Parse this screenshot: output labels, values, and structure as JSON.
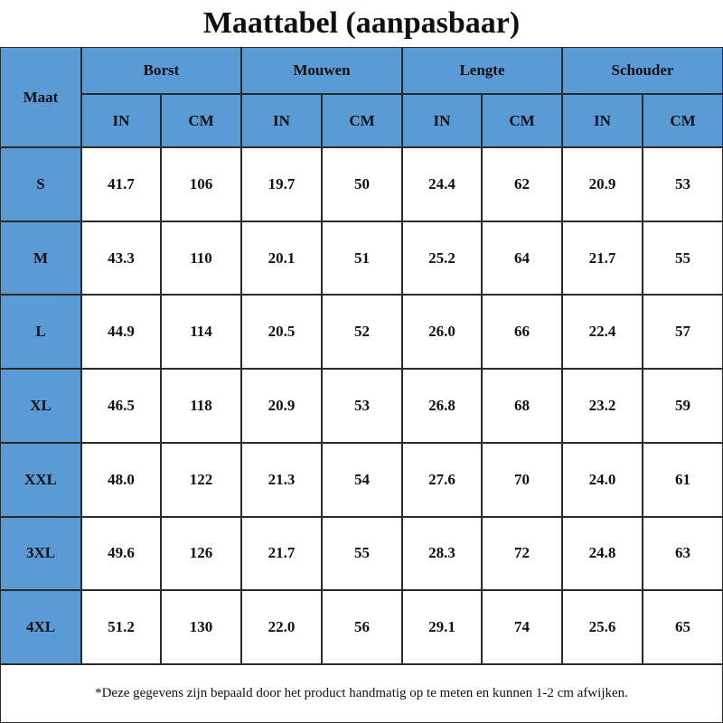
{
  "header": {
    "title": "Maattabel (aanpasbaar)",
    "size_label": "Maat",
    "groups": [
      {
        "label": "Borst",
        "units": [
          "IN",
          "CM"
        ]
      },
      {
        "label": "Mouwen",
        "units": [
          "IN",
          "CM"
        ]
      },
      {
        "label": "Lengte",
        "units": [
          "IN",
          "CM"
        ]
      },
      {
        "label": "Schouder",
        "units": [
          "IN",
          "CM"
        ]
      }
    ]
  },
  "table": {
    "rows": [
      {
        "size": "S",
        "values": [
          "41.7",
          "106",
          "19.7",
          "50",
          "24.4",
          "62",
          "20.9",
          "53"
        ]
      },
      {
        "size": "M",
        "values": [
          "43.3",
          "110",
          "20.1",
          "51",
          "25.2",
          "64",
          "21.7",
          "55"
        ]
      },
      {
        "size": "L",
        "values": [
          "44.9",
          "114",
          "20.5",
          "52",
          "26.0",
          "66",
          "22.4",
          "57"
        ]
      },
      {
        "size": "XL",
        "values": [
          "46.5",
          "118",
          "20.9",
          "53",
          "26.8",
          "68",
          "23.2",
          "59"
        ]
      },
      {
        "size": "XXL",
        "values": [
          "48.0",
          "122",
          "21.3",
          "54",
          "27.6",
          "70",
          "24.0",
          "61"
        ]
      },
      {
        "size": "3XL",
        "values": [
          "49.6",
          "126",
          "21.7",
          "55",
          "28.3",
          "72",
          "24.8",
          "63"
        ]
      },
      {
        "size": "4XL",
        "values": [
          "51.2",
          "130",
          "22.0",
          "56",
          "29.1",
          "74",
          "25.6",
          "65"
        ]
      }
    ]
  },
  "footnote": "*Deze gegevens zijn bepaald door het product handmatig op te meten en kunnen 1-2 cm afwijken."
}
